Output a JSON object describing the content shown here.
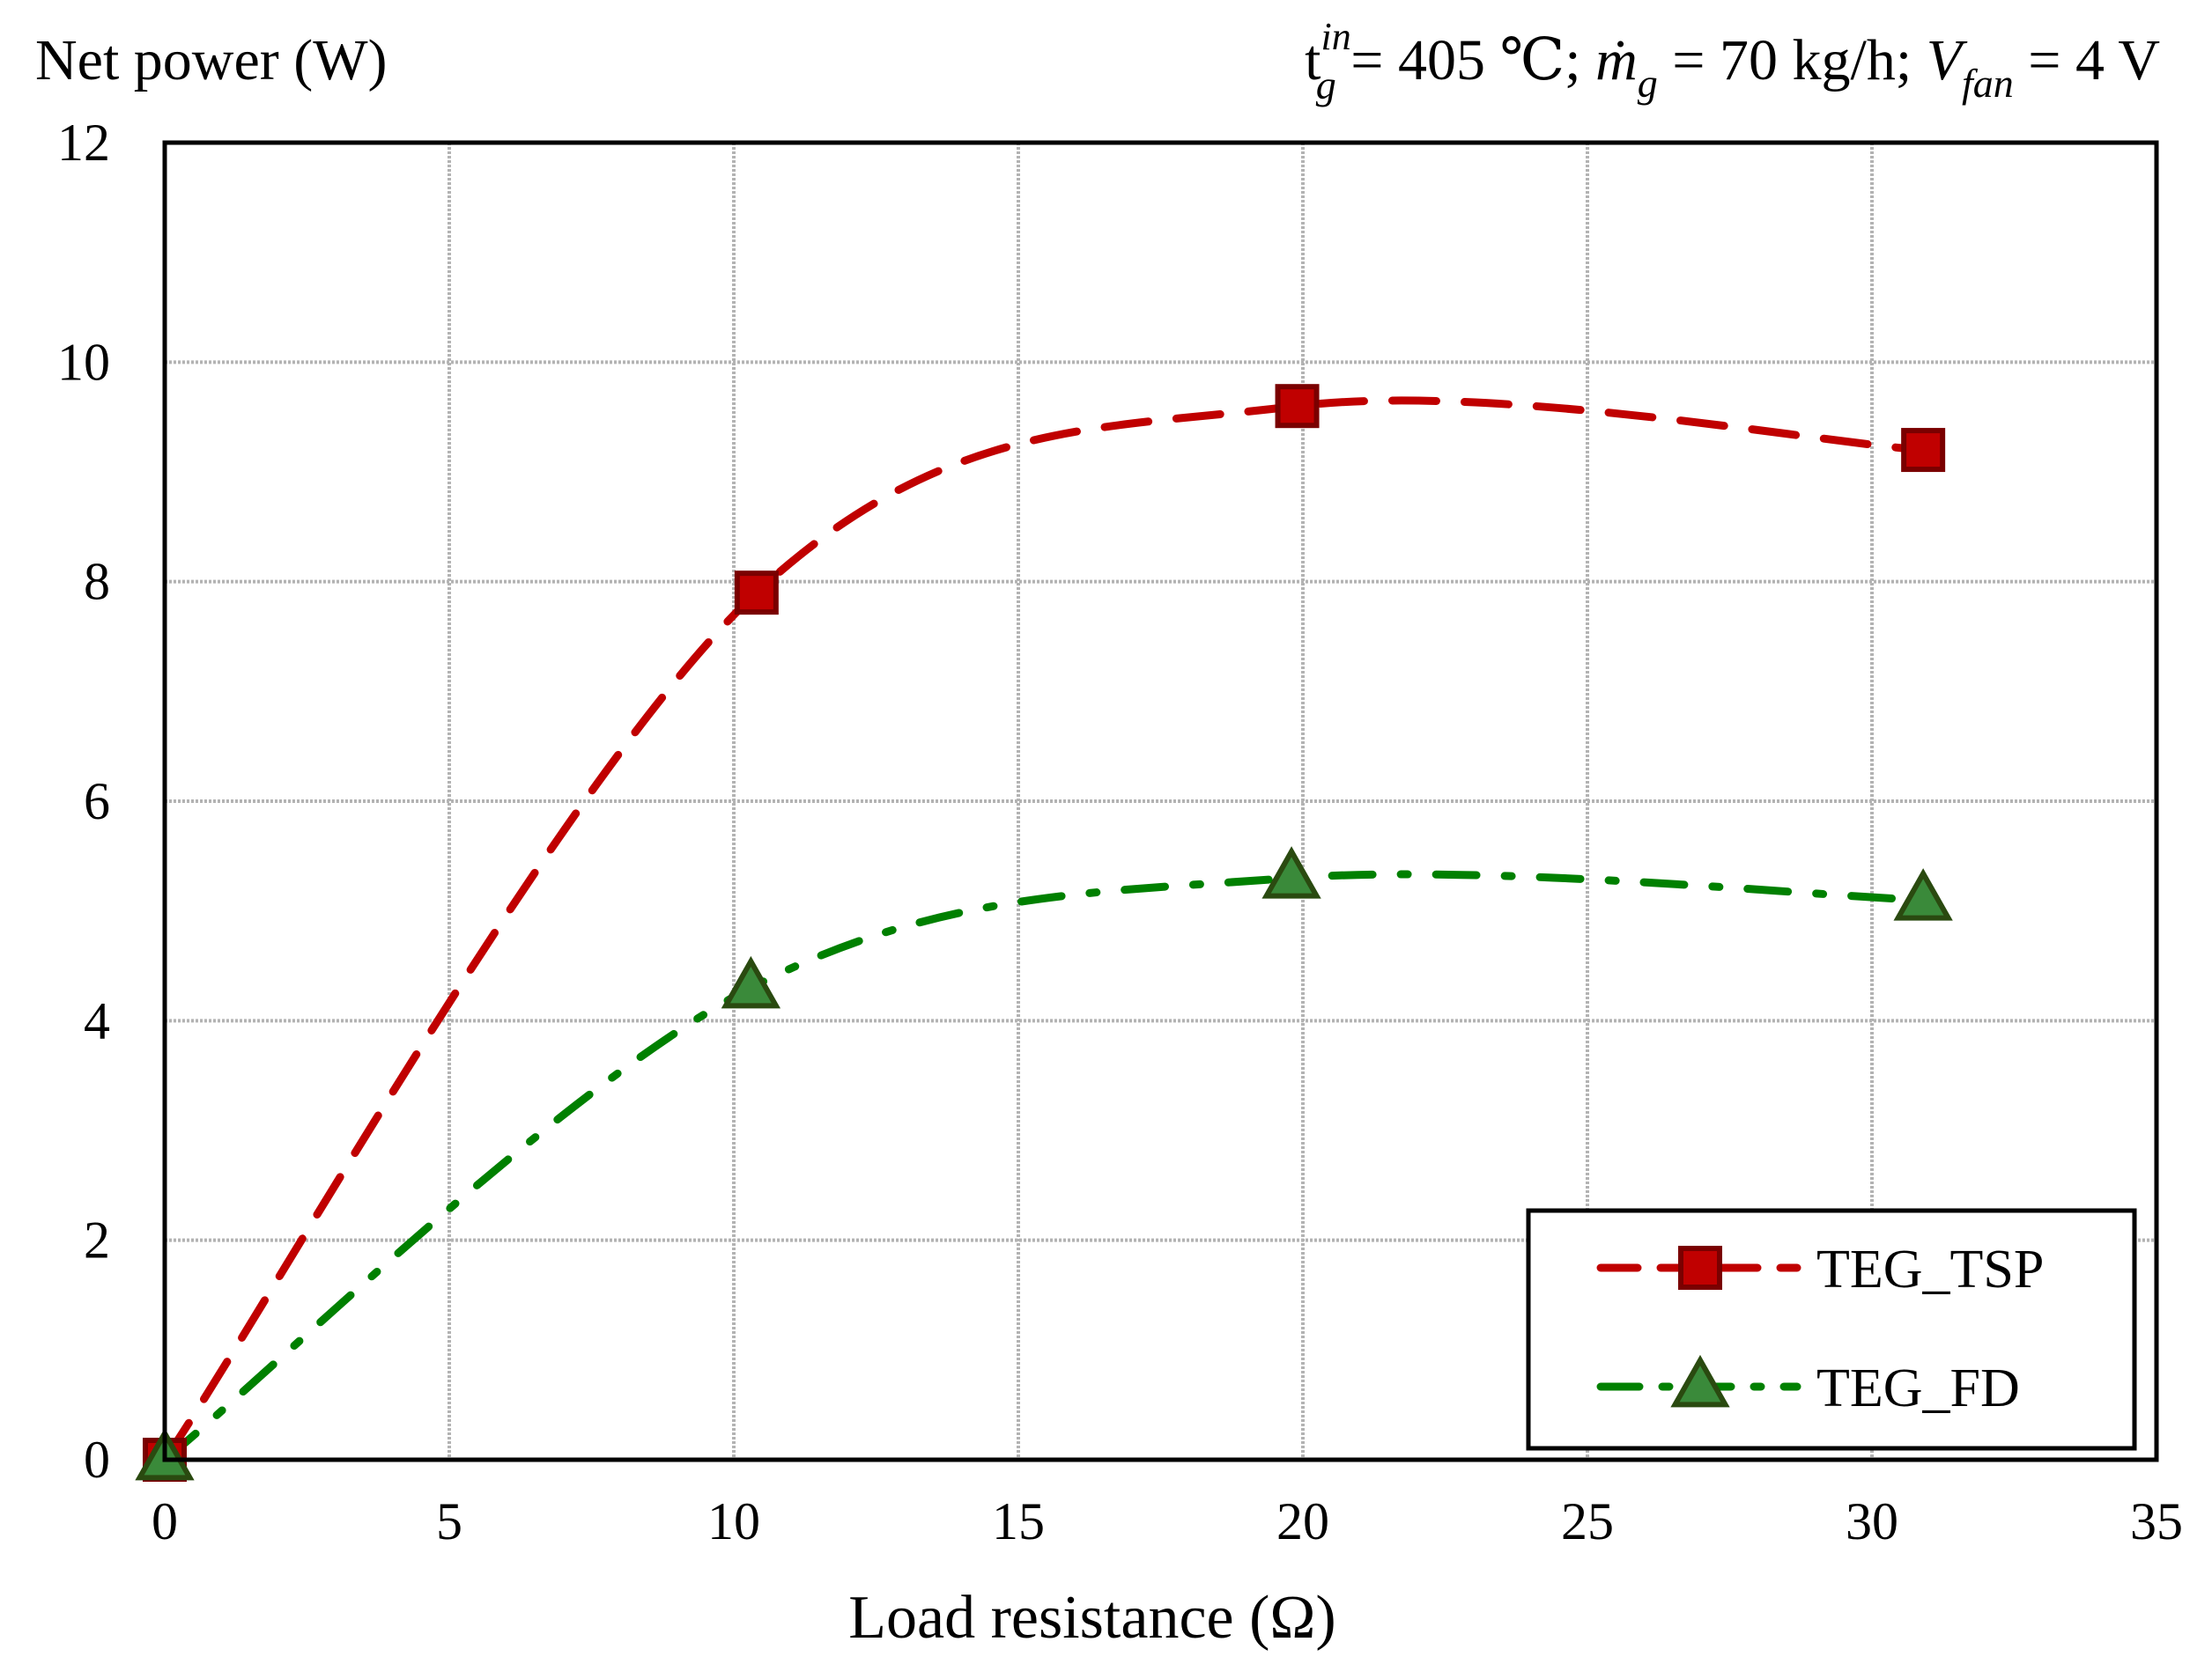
{
  "chart_data": {
    "type": "line",
    "title_parts": {
      "t": "t",
      "t_sub": "g",
      "t_sup": "in",
      "t_value": " = 405 ℃;  ",
      "m": "ṁ",
      "m_sub": "g",
      "m_value": " = 70 kg/h;  ",
      "v": "V",
      "v_sub": "fan",
      "v_value": " = 4 V"
    },
    "ylabel": "Net power (W)",
    "xlabel": "Load resistance (Ω)",
    "xlim": [
      0,
      35
    ],
    "ylim": [
      0,
      12
    ],
    "x_ticks": [
      "0",
      "5",
      "10",
      "15",
      "20",
      "25",
      "30",
      "35"
    ],
    "y_ticks": [
      "0",
      "2",
      "4",
      "6",
      "8",
      "10",
      "12"
    ],
    "grid": true,
    "legend_position": "bottom-right",
    "series": [
      {
        "name": "TEG_TSP",
        "color": "#c00000",
        "marker_color": "#c00000",
        "marker_edge": "#7a0000",
        "marker": "square",
        "line_style": "dashed",
        "points": [
          {
            "x": 0,
            "y": 0
          },
          {
            "x": 10.4,
            "y": 7.9
          },
          {
            "x": 19.9,
            "y": 9.6
          },
          {
            "x": 30.9,
            "y": 9.2
          }
        ]
      },
      {
        "name": "TEG_FD",
        "color": "#008000",
        "marker_color": "#3a8a3a",
        "marker_edge": "#2a4a10",
        "marker": "triangle",
        "line_style": "dash-dot",
        "points": [
          {
            "x": 0,
            "y": 0
          },
          {
            "x": 10.3,
            "y": 4.3
          },
          {
            "x": 19.8,
            "y": 5.3
          },
          {
            "x": 30.9,
            "y": 5.1
          }
        ]
      }
    ]
  }
}
